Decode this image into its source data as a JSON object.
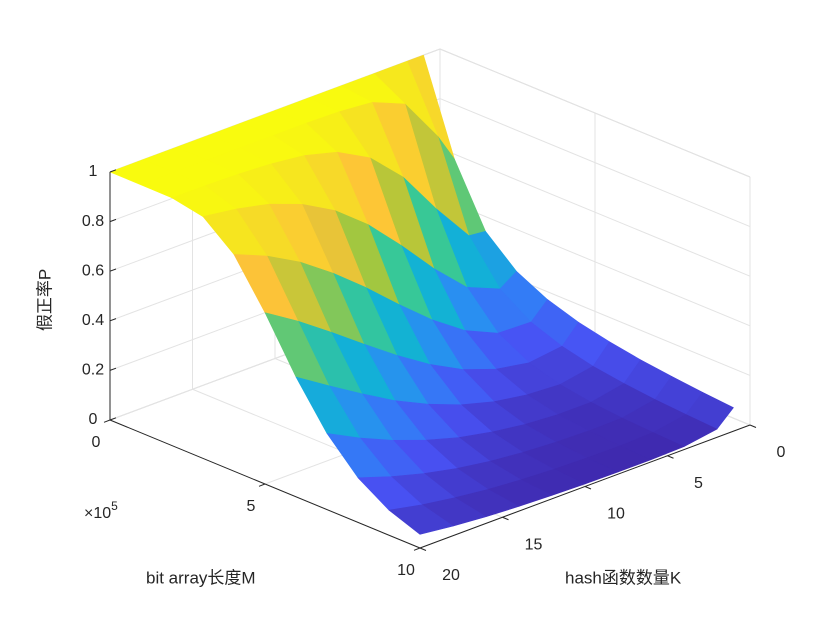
{
  "chart_data": {
    "type": "surface",
    "xlabel": "bit array长度M",
    "ylabel": "hash函数数量K",
    "zlabel": "假正率P",
    "x_exponent": {
      "base": "×10",
      "power": "5"
    },
    "x": [
      0,
      1,
      2,
      3,
      4,
      5,
      6,
      7,
      8,
      9,
      10
    ],
    "y": [
      1,
      2,
      4,
      6,
      8,
      10,
      12,
      14,
      16,
      18,
      20
    ],
    "z": [
      [
        1,
        0.632,
        0.393,
        0.283,
        0.221,
        0.181,
        0.154,
        0.133,
        0.118,
        0.105,
        0.095
      ],
      [
        1,
        0.748,
        0.4,
        0.237,
        0.155,
        0.109,
        0.08,
        0.062,
        0.049,
        0.04,
        0.033
      ],
      [
        1,
        0.929,
        0.559,
        0.293,
        0.16,
        0.092,
        0.056,
        0.036,
        0.024,
        0.017,
        0.012
      ],
      [
        1,
        0.985,
        0.736,
        0.418,
        0.22,
        0.116,
        0.064,
        0.036,
        0.022,
        0.013,
        0.009
      ],
      [
        1,
        0.997,
        0.863,
        0.562,
        0.313,
        0.164,
        0.086,
        0.046,
        0.026,
        0.014,
        0.009
      ],
      [
        1,
        1.0,
        0.935,
        0.695,
        0.424,
        0.234,
        0.123,
        0.065,
        0.034,
        0.018,
        0.01
      ],
      [
        1,
        1.0,
        0.971,
        0.801,
        0.542,
        0.32,
        0.175,
        0.092,
        0.048,
        0.025,
        0.014
      ],
      [
        1,
        1.0,
        0.987,
        0.876,
        0.65,
        0.415,
        0.239,
        0.131,
        0.069,
        0.036,
        0.019
      ],
      [
        1,
        1.0,
        0.995,
        0.926,
        0.744,
        0.513,
        0.316,
        0.18,
        0.098,
        0.052,
        0.027
      ],
      [
        1,
        1.0,
        0.998,
        0.956,
        0.818,
        0.607,
        0.398,
        0.239,
        0.135,
        0.073,
        0.039
      ],
      [
        1,
        1.0,
        0.999,
        0.975,
        0.874,
        0.691,
        0.483,
        0.307,
        0.18,
        0.101,
        0.055
      ]
    ],
    "xlim": [
      0,
      10
    ],
    "xticks": [
      0,
      5,
      10
    ],
    "ylim": [
      0,
      20
    ],
    "yticks": [
      0,
      5,
      10,
      15,
      20
    ],
    "zlim": [
      0,
      1
    ],
    "zticks": [
      0,
      0.2,
      0.4,
      0.6,
      0.8,
      1
    ],
    "grid": true,
    "colormap": "parula"
  }
}
